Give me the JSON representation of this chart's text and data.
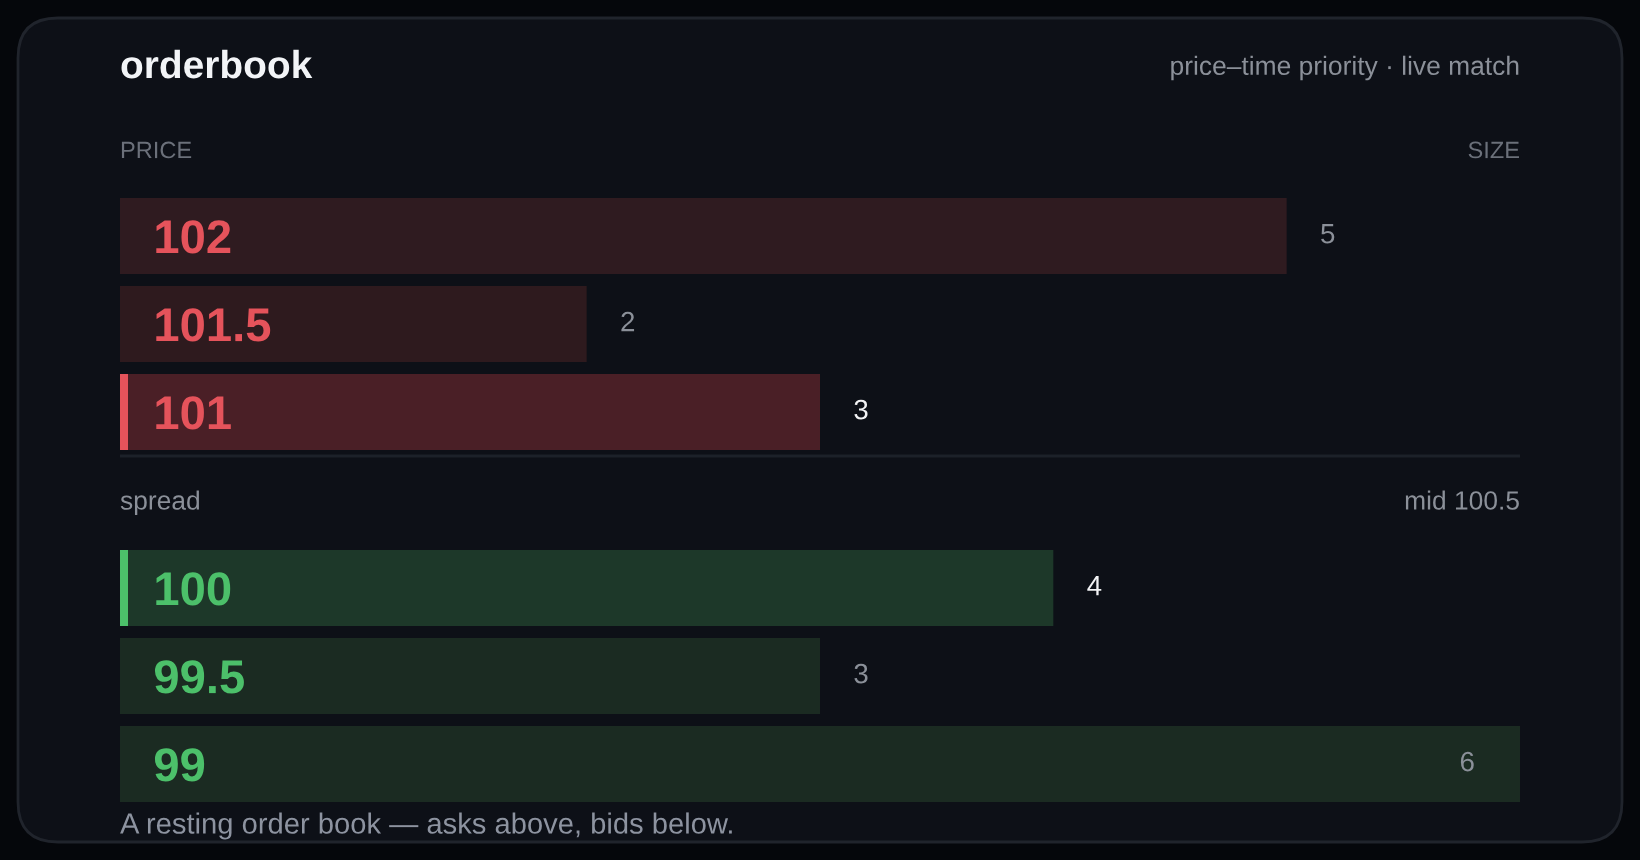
{
  "chart_data": {
    "type": "bar",
    "orientation": "horizontal",
    "title": "orderbook",
    "subtitle": "price–time priority · live match",
    "ylabel": "PRICE",
    "xlabel": "SIZE",
    "x": [
      102,
      101.5,
      101,
      100,
      99.5,
      99
    ],
    "values": [
      5,
      2,
      3,
      4,
      3,
      6
    ],
    "colors": [
      "#2f1b20",
      "#2e1a1e",
      "#4a1f26",
      "#1d3829",
      "#1b2b22",
      "#1b2b22"
    ],
    "xlim": [
      0,
      6
    ],
    "ylim": [
      98.75,
      102.25
    ],
    "yticks": [
      102,
      101.5,
      101,
      100,
      99.5,
      99
    ],
    "tick_labels": "y",
    "data_labels": true,
    "ref_lines": [
      {
        "axis": "y",
        "value": 100.75,
        "label": "spread",
        "color": "#1c2129"
      }
    ],
    "annotations": [
      "mid 100.5",
      "A resting order book — asks above, bids below."
    ]
  }
}
